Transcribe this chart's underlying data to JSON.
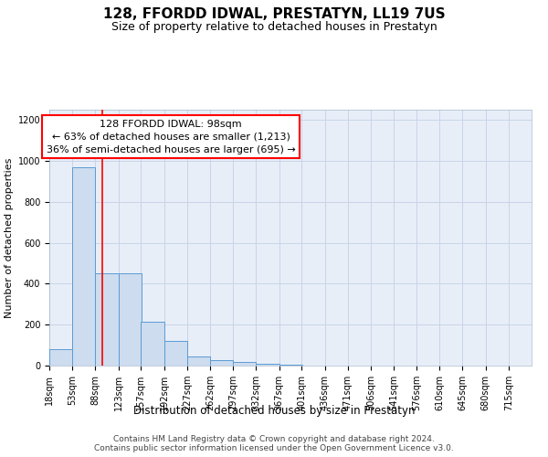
{
  "title": "128, FFORDD IDWAL, PRESTATYN, LL19 7US",
  "subtitle": "Size of property relative to detached houses in Prestatyn",
  "xlabel": "Distribution of detached houses by size in Prestatyn",
  "ylabel": "Number of detached properties",
  "bin_edges": [
    18,
    53,
    88,
    123,
    157,
    192,
    227,
    262,
    297,
    332,
    367,
    401,
    436,
    471,
    506,
    541,
    576,
    610,
    645,
    680,
    715
  ],
  "bar_heights": [
    80,
    970,
    450,
    450,
    215,
    120,
    45,
    25,
    20,
    10,
    5,
    0,
    0,
    0,
    0,
    0,
    0,
    0,
    0,
    0
  ],
  "bar_color": "#cddcee",
  "bar_edge_color": "#5b9bd5",
  "grid_color": "#c8d4e8",
  "bg_color": "#e8eef8",
  "red_line_x": 98,
  "annotation_text": "128 FFORDD IDWAL: 98sqm\n← 63% of detached houses are smaller (1,213)\n36% of semi-detached houses are larger (695) →",
  "annotation_box_color": "white",
  "annotation_box_edge_color": "red",
  "ylim": [
    0,
    1250
  ],
  "yticks": [
    0,
    200,
    400,
    600,
    800,
    1000,
    1200
  ],
  "footer_text": "Contains HM Land Registry data © Crown copyright and database right 2024.\nContains public sector information licensed under the Open Government Licence v3.0.",
  "title_fontsize": 11,
  "subtitle_fontsize": 9,
  "ylabel_fontsize": 8,
  "xlabel_fontsize": 8.5,
  "tick_label_fontsize": 7,
  "annotation_fontsize": 8,
  "footer_fontsize": 6.5
}
